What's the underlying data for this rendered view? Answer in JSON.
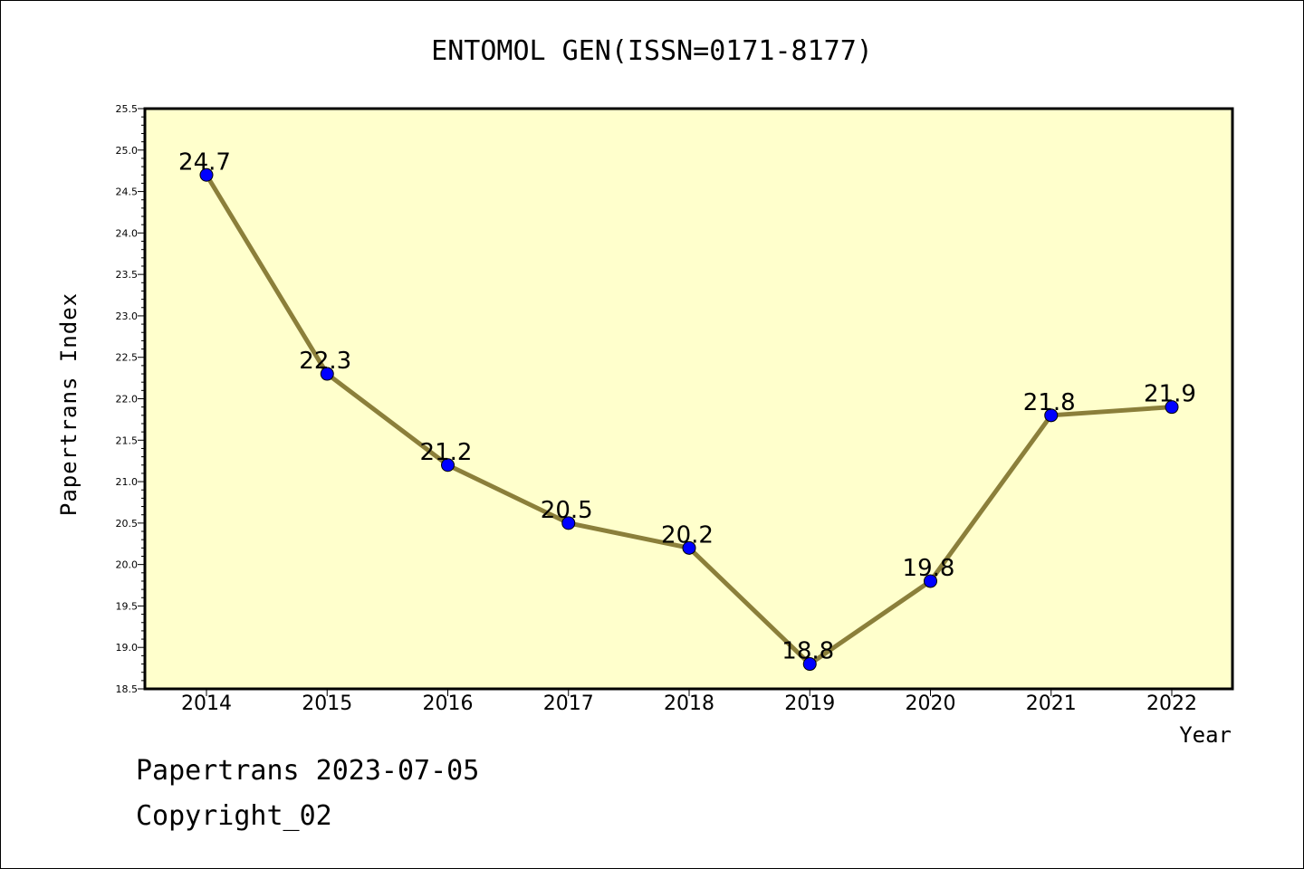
{
  "chart_data": {
    "type": "line",
    "title": "ENTOMOL GEN(ISSN=0171-8177)",
    "xlabel": "Year",
    "ylabel": "Papertrans Index",
    "categories": [
      "2014",
      "2015",
      "2016",
      "2017",
      "2018",
      "2019",
      "2020",
      "2021",
      "2022"
    ],
    "series": [
      {
        "values": [
          24.7,
          22.3,
          21.2,
          20.5,
          20.2,
          18.8,
          19.8,
          21.8,
          21.9
        ]
      }
    ],
    "data_labels": [
      "24.7",
      "22.3",
      "21.2",
      "20.5",
      "20.2",
      "18.8",
      "19.8",
      "21.8",
      "21.9"
    ],
    "ylim": [
      18.5,
      25.5
    ],
    "yticks": [
      "18.5",
      "19.0",
      "19.5",
      "20.0",
      "20.5",
      "21.0",
      "21.5",
      "22.0",
      "22.5",
      "23.0",
      "23.5",
      "24.0",
      "24.5",
      "25.0",
      "25.5"
    ],
    "grid": false,
    "colors": {
      "plot_bg": "#ffffcc",
      "line": "#8b7f3a",
      "marker": "#0000ff"
    }
  },
  "footer": {
    "line1": "Papertrans 2023-07-05",
    "line2": "Copyright_02"
  }
}
